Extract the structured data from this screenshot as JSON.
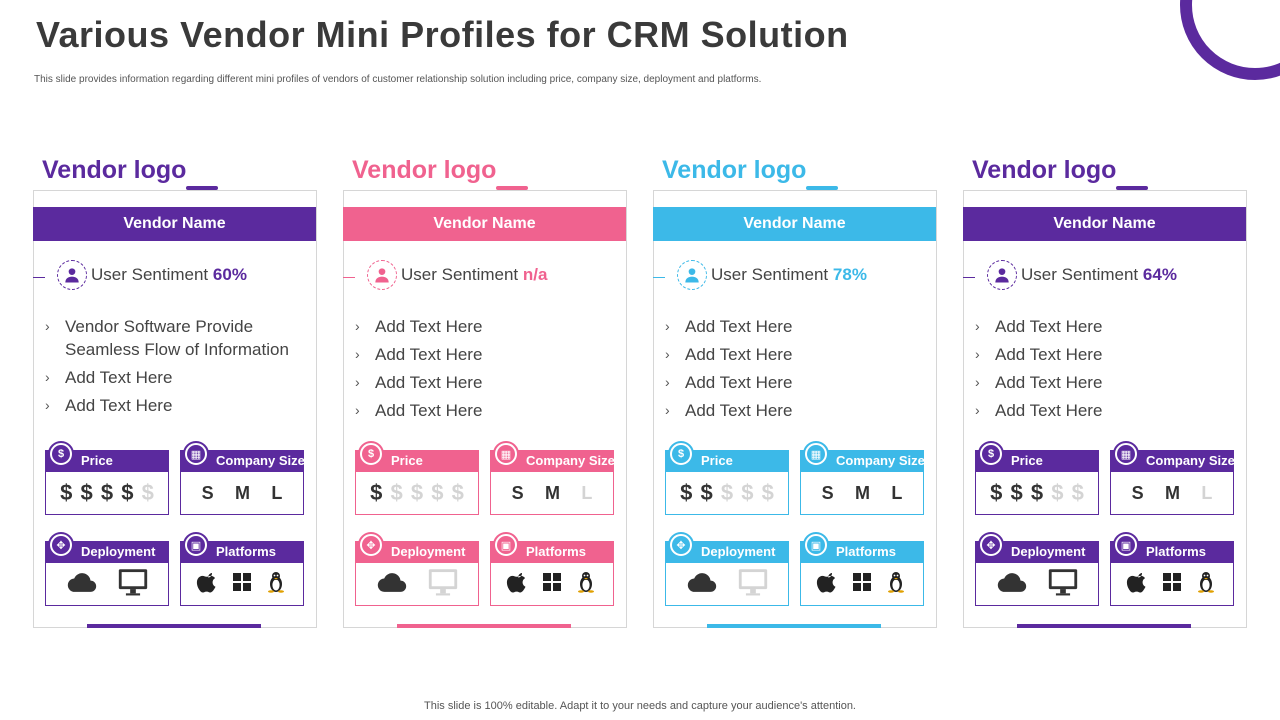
{
  "page": {
    "title": "Various Vendor Mini Profiles for CRM Solution",
    "subtitle": "This slide provides information regarding different mini profiles of vendors of customer relationship solution including price, company size, deployment and platforms.",
    "footer": "This slide is 100% editable. Adapt it to your needs and capture your audience's attention."
  },
  "vendors": [
    {
      "color": "#5b2a9e",
      "logo": "Vendor logo",
      "name": "Vendor Name",
      "sentiment_label": "User Sentiment",
      "sentiment_value": "60%",
      "bullets": [
        "Vendor Software Provide Seamless Flow of Information",
        "Add Text Here",
        "Add Text Here"
      ],
      "price_label": "Price",
      "price_level": 4,
      "company_size_label": "Company Size",
      "sizes": [
        "S",
        "M",
        "L"
      ],
      "sizes_active": [
        true,
        true,
        true
      ],
      "deployment_label": "Deployment",
      "deployment_active": [
        true,
        true
      ],
      "platforms_label": "Platforms",
      "platforms_active": [
        true,
        true,
        true
      ]
    },
    {
      "color": "#f0628f",
      "logo": "Vendor logo",
      "name": "Vendor Name",
      "sentiment_label": "User Sentiment",
      "sentiment_value": "n/a",
      "bullets": [
        "Add Text Here",
        "Add Text Here",
        "Add Text Here",
        "Add Text Here"
      ],
      "price_label": "Price",
      "price_level": 1,
      "company_size_label": "Company Size",
      "sizes": [
        "S",
        "M",
        "L"
      ],
      "sizes_active": [
        true,
        true,
        false
      ],
      "deployment_label": "Deployment",
      "deployment_active": [
        true,
        false
      ],
      "platforms_label": "Platforms",
      "platforms_active": [
        true,
        true,
        true
      ]
    },
    {
      "color": "#3cb9e8",
      "logo": "Vendor logo",
      "name": "Vendor Name",
      "sentiment_label": "User Sentiment",
      "sentiment_value": "78%",
      "bullets": [
        "Add Text Here",
        "Add Text Here",
        "Add Text Here",
        "Add Text Here"
      ],
      "price_label": "Price",
      "price_level": 2,
      "company_size_label": "Company Size",
      "sizes": [
        "S",
        "M",
        "L"
      ],
      "sizes_active": [
        true,
        true,
        true
      ],
      "deployment_label": "Deployment",
      "deployment_active": [
        true,
        false
      ],
      "platforms_label": "Platforms",
      "platforms_active": [
        true,
        true,
        true
      ]
    },
    {
      "color": "#5b2a9e",
      "logo": "Vendor logo",
      "name": "Vendor Name",
      "sentiment_label": "User Sentiment",
      "sentiment_value": "64%",
      "bullets": [
        "Add Text Here",
        "Add Text Here",
        "Add Text Here",
        "Add Text Here"
      ],
      "price_label": "Price",
      "price_level": 3,
      "company_size_label": "Company Size",
      "sizes": [
        "S",
        "M",
        "L"
      ],
      "sizes_active": [
        true,
        true,
        false
      ],
      "deployment_label": "Deployment",
      "deployment_active": [
        true,
        true
      ],
      "platforms_label": "Platforms",
      "platforms_active": [
        true,
        true,
        true
      ]
    }
  ],
  "icons": {
    "sentiment": "user-icon",
    "price": "dollar-coin-icon",
    "company_size": "building-icon",
    "deployment": "network-icon",
    "platforms": "devices-icon",
    "deployment_items": [
      "cloud-icon",
      "monitor-icon"
    ],
    "platform_items": [
      "apple-icon",
      "windows-icon",
      "linux-icon"
    ]
  }
}
